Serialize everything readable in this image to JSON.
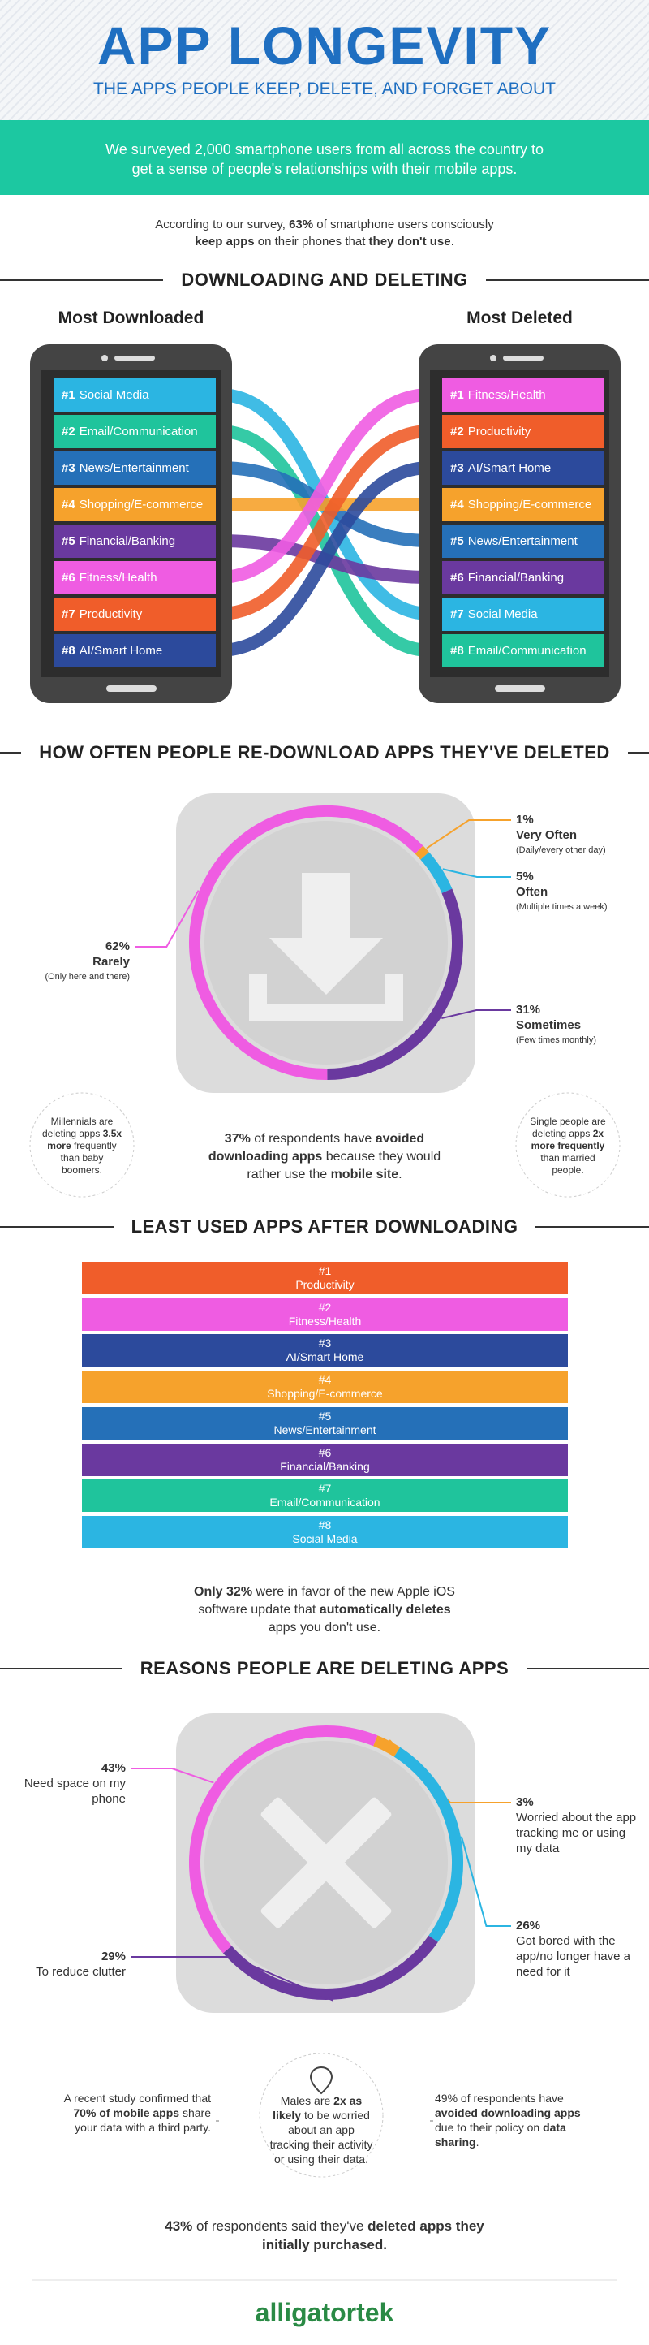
{
  "header": {
    "title": "APP LONGEVITY",
    "subtitle": "THE APPS PEOPLE KEEP, DELETE, AND FORGET ABOUT"
  },
  "banner": "We surveyed 2,000 smartphone users from all across the country to get a sense of people's relationships with their mobile apps.",
  "intro": [
    "According to our survey, ",
    {
      "bold": "63%"
    },
    " of smartphone users consciously ",
    {
      "bold": "keep apps"
    },
    " on their phones that ",
    {
      "bold": "they don't use"
    },
    "."
  ],
  "downloading": {
    "heading": "DOWNLOADING AND DELETING",
    "lists": [
      {
        "title": "Most Downloaded",
        "items": [
          {
            "rank": "#1",
            "name": "Social Media",
            "color": "#2bb5e2"
          },
          {
            "rank": "#2",
            "name": "Email/Communication",
            "color": "#1fc49c"
          },
          {
            "rank": "#3",
            "name": "News/Entertainment",
            "color": "#2570b8"
          },
          {
            "rank": "#4",
            "name": "Shopping/E-commerce",
            "color": "#f6a22c"
          },
          {
            "rank": "#5",
            "name": "Financial/Banking",
            "color": "#6a399f"
          },
          {
            "rank": "#6",
            "name": "Fitness/Health",
            "color": "#ef5ce2"
          },
          {
            "rank": "#7",
            "name": "Productivity",
            "color": "#f05d2a"
          },
          {
            "rank": "#8",
            "name": "AI/Smart Home",
            "color": "#2c4a9c"
          }
        ]
      },
      {
        "title": "Most Deleted",
        "items": [
          {
            "rank": "#1",
            "name": "Fitness/Health",
            "color": "#ef5ce2"
          },
          {
            "rank": "#2",
            "name": "Productivity",
            "color": "#f05d2a"
          },
          {
            "rank": "#3",
            "name": "AI/Smart Home",
            "color": "#2c4a9c"
          },
          {
            "rank": "#4",
            "name": "Shopping/E-commerce",
            "color": "#f6a22c"
          },
          {
            "rank": "#5",
            "name": "News/Entertainment",
            "color": "#2570b8"
          },
          {
            "rank": "#6",
            "name": "Financial/Banking",
            "color": "#6a399f"
          },
          {
            "rank": "#7",
            "name": "Social Media",
            "color": "#2bb5e2"
          },
          {
            "rank": "#8",
            "name": "Email/Communication",
            "color": "#1fc49c"
          }
        ]
      }
    ]
  },
  "redownload": {
    "heading": "HOW OFTEN PEOPLE RE-DOWNLOAD APPS THEY'VE DELETED",
    "segments": [
      {
        "value": 1,
        "value_label": "1%",
        "label": "Very Often",
        "note": "(Daily/every other day)",
        "color": "#f6a22c"
      },
      {
        "value": 5,
        "value_label": "5%",
        "label": "Often",
        "note": "(Multiple times a week)",
        "color": "#2bb5e2"
      },
      {
        "value": 31,
        "value_label": "31%",
        "label": "Sometimes",
        "note": "(Few times monthly)",
        "color": "#6a399f"
      },
      {
        "value": 62,
        "value_label": "62%",
        "label": "Rarely",
        "note": "(Only here and there)",
        "color": "#ef5ce2"
      }
    ],
    "side_notes": [
      [
        "Millennials are deleting apps ",
        {
          "bold": "3.5x more"
        },
        " frequently than baby boomers."
      ],
      [
        "Single people are deleting apps ",
        {
          "bold": "2x more frequently"
        },
        " than married people."
      ]
    ],
    "caption": [
      {
        "bold": "37%"
      },
      " of respondents have ",
      {
        "bold": "avoided downloading apps"
      },
      " because they would rather use the ",
      {
        "bold": "mobile site"
      },
      "."
    ]
  },
  "least_used": {
    "heading": "LEAST USED APPS AFTER DOWNLOADING",
    "rows": [
      {
        "rank": "#1",
        "name": "Productivity",
        "color": "#f05d2a"
      },
      {
        "rank": "#2",
        "name": "Fitness/Health",
        "color": "#ef5ce2"
      },
      {
        "rank": "#3",
        "name": "AI/Smart Home",
        "color": "#2c4a9c"
      },
      {
        "rank": "#4",
        "name": "Shopping/E-commerce",
        "color": "#f6a22c"
      },
      {
        "rank": "#5",
        "name": "News/Entertainment",
        "color": "#2570b8"
      },
      {
        "rank": "#6",
        "name": "Financial/Banking",
        "color": "#6a399f"
      },
      {
        "rank": "#7",
        "name": "Email/Communication",
        "color": "#1fc49c"
      },
      {
        "rank": "#8",
        "name": "Social Media",
        "color": "#2bb5e2"
      }
    ],
    "caption": [
      {
        "bold": "Only 32%"
      },
      " were in favor of the new Apple iOS software update that ",
      {
        "bold": "automatically deletes"
      },
      " apps you don't use."
    ]
  },
  "reasons": {
    "heading": "REASONS PEOPLE ARE DELETING APPS",
    "segments": [
      {
        "value": 3,
        "value_label": "3%",
        "label": "Worried about the app tracking me or using my data",
        "color": "#f6a22c"
      },
      {
        "value": 26,
        "value_label": "26%",
        "label": "Got bored with the app/no longer have a need for it",
        "color": "#2bb5e2"
      },
      {
        "value": 29,
        "value_label": "29%",
        "label": "To reduce clutter",
        "color": "#6a399f"
      },
      {
        "value": 43,
        "value_label": "43%",
        "label": "Need space on my phone",
        "color": "#ef5ce2"
      }
    ],
    "notes": [
      [
        "A recent study confirmed that ",
        {
          "bold": "70% of mobile apps"
        },
        " share your data with a third party."
      ],
      [
        "Males are ",
        {
          "bold": "2x as likely"
        },
        " to be worried about an app tracking their activity or using their data."
      ],
      [
        "49% of respondents have ",
        {
          "bold": "avoided downloading apps"
        },
        " due to their policy on ",
        {
          "bold": "data sharing"
        },
        "."
      ]
    ],
    "caption": [
      {
        "bold": "43%"
      },
      " of respondents said they've ",
      {
        "bold": "deleted apps they initially purchased."
      }
    ]
  },
  "footer": {
    "logo": "alligatortek"
  }
}
